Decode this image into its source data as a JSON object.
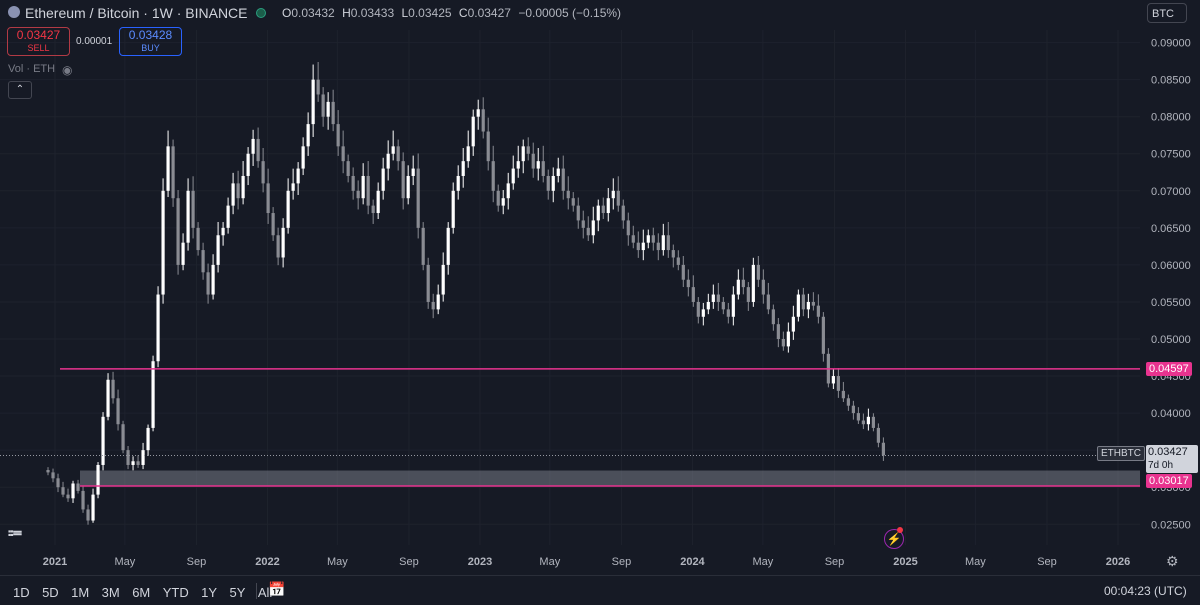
{
  "header": {
    "symbol_title": "Ethereum / Bitcoin · 1W · BINANCE",
    "ohlc": {
      "o_label": "O",
      "o": "0.03432",
      "h_label": "H",
      "h": "0.03433",
      "l_label": "L",
      "l": "0.03425",
      "c_label": "C",
      "c": "0.03427",
      "change": "−0.00005 (−0.15%)"
    },
    "sell_price": "0.03427",
    "sell_label": "SELL",
    "spread": "0.00001",
    "buy_price": "0.03428",
    "buy_label": "BUY",
    "currency_button": "BTC",
    "volume_label": "Vol · ETH"
  },
  "bottom_bar": {
    "ranges": [
      "1D",
      "5D",
      "1M",
      "3M",
      "6M",
      "YTD",
      "1Y",
      "5Y",
      "All"
    ],
    "time": "00:04:23 (UTC)"
  },
  "tags": {
    "symbol": "ETHBTC",
    "last": "0.03427",
    "countdown": "7d 0h",
    "upper_line": "0.04597",
    "lower_line": "0.03017"
  },
  "colors": {
    "background": "#161a25",
    "candle_up": "#ffffff",
    "candle_down": "#8a8c93",
    "line_magenta": "#e8338f"
  },
  "chart_data": {
    "type": "candlestick",
    "title": "Ethereum / Bitcoin · 1W · BINANCE",
    "y_ticks": [
      "0.02500",
      "0.03000",
      "0.03500",
      "0.04000",
      "0.04500",
      "0.05000",
      "0.05500",
      "0.06000",
      "0.06500",
      "0.07000",
      "0.07500",
      "0.08000",
      "0.08500",
      "0.09000"
    ],
    "x_ticks": [
      {
        "label": "2021",
        "bold": true
      },
      {
        "label": "May"
      },
      {
        "label": "Sep"
      },
      {
        "label": "2022",
        "bold": true
      },
      {
        "label": "May"
      },
      {
        "label": "Sep"
      },
      {
        "label": "2023",
        "bold": true
      },
      {
        "label": "May"
      },
      {
        "label": "Sep"
      },
      {
        "label": "2024",
        "bold": true
      },
      {
        "label": "May"
      },
      {
        "label": "Sep"
      },
      {
        "label": "2025",
        "bold": true
      },
      {
        "label": "May"
      },
      {
        "label": "Sep"
      },
      {
        "label": "2026",
        "bold": true
      }
    ],
    "x_tick_dates": [
      "2021-01-01",
      "2021-05-01",
      "2021-09-01",
      "2022-01-01",
      "2022-05-01",
      "2022-09-01",
      "2023-01-01",
      "2023-05-01",
      "2023-09-01",
      "2024-01-01",
      "2024-05-01",
      "2024-09-01",
      "2025-01-01",
      "2025-05-01",
      "2025-09-01",
      "2026-01-01"
    ],
    "ylim": [
      0.0222,
      0.0917
    ],
    "horizontal_lines": [
      {
        "value": 0.04597,
        "label": "0.04597",
        "color": "#e8338f"
      },
      {
        "value": 0.03017,
        "label": "0.03017",
        "color": "#e8338f"
      }
    ],
    "zone": {
      "from": 0.03017,
      "to": 0.03225
    },
    "last_price": 0.03427,
    "closes": [
      0.032,
      0.0312,
      0.03,
      0.029,
      0.0285,
      0.0305,
      0.0295,
      0.027,
      0.0255,
      0.029,
      0.033,
      0.0395,
      0.0445,
      0.042,
      0.0385,
      0.035,
      0.033,
      0.0335,
      0.033,
      0.035,
      0.038,
      0.047,
      0.056,
      0.07,
      0.076,
      0.069,
      0.06,
      0.063,
      0.07,
      0.065,
      0.062,
      0.059,
      0.056,
      0.06,
      0.064,
      0.065,
      0.068,
      0.071,
      0.069,
      0.072,
      0.075,
      0.077,
      0.074,
      0.071,
      0.067,
      0.064,
      0.061,
      0.065,
      0.07,
      0.071,
      0.073,
      0.076,
      0.079,
      0.085,
      0.083,
      0.08,
      0.082,
      0.079,
      0.076,
      0.074,
      0.072,
      0.07,
      0.069,
      0.072,
      0.068,
      0.067,
      0.07,
      0.073,
      0.075,
      0.076,
      0.074,
      0.069,
      0.072,
      0.073,
      0.065,
      0.06,
      0.055,
      0.054,
      0.056,
      0.06,
      0.065,
      0.07,
      0.072,
      0.074,
      0.076,
      0.08,
      0.081,
      0.078,
      0.074,
      0.07,
      0.068,
      0.069,
      0.071,
      0.073,
      0.074,
      0.076,
      0.075,
      0.073,
      0.074,
      0.072,
      0.07,
      0.072,
      0.073,
      0.07,
      0.069,
      0.068,
      0.066,
      0.065,
      0.064,
      0.066,
      0.068,
      0.067,
      0.069,
      0.07,
      0.068,
      0.066,
      0.064,
      0.063,
      0.062,
      0.063,
      0.064,
      0.063,
      0.062,
      0.064,
      0.062,
      0.061,
      0.06,
      0.058,
      0.057,
      0.055,
      0.053,
      0.054,
      0.055,
      0.056,
      0.055,
      0.054,
      0.053,
      0.056,
      0.058,
      0.057,
      0.055,
      0.06,
      0.058,
      0.056,
      0.054,
      0.052,
      0.05,
      0.049,
      0.051,
      0.053,
      0.056,
      0.054,
      0.055,
      0.0545,
      0.053,
      0.048,
      0.044,
      0.045,
      0.043,
      0.042,
      0.041,
      0.04,
      0.039,
      0.0385,
      0.0395,
      0.038,
      0.036,
      0.0343
    ]
  }
}
